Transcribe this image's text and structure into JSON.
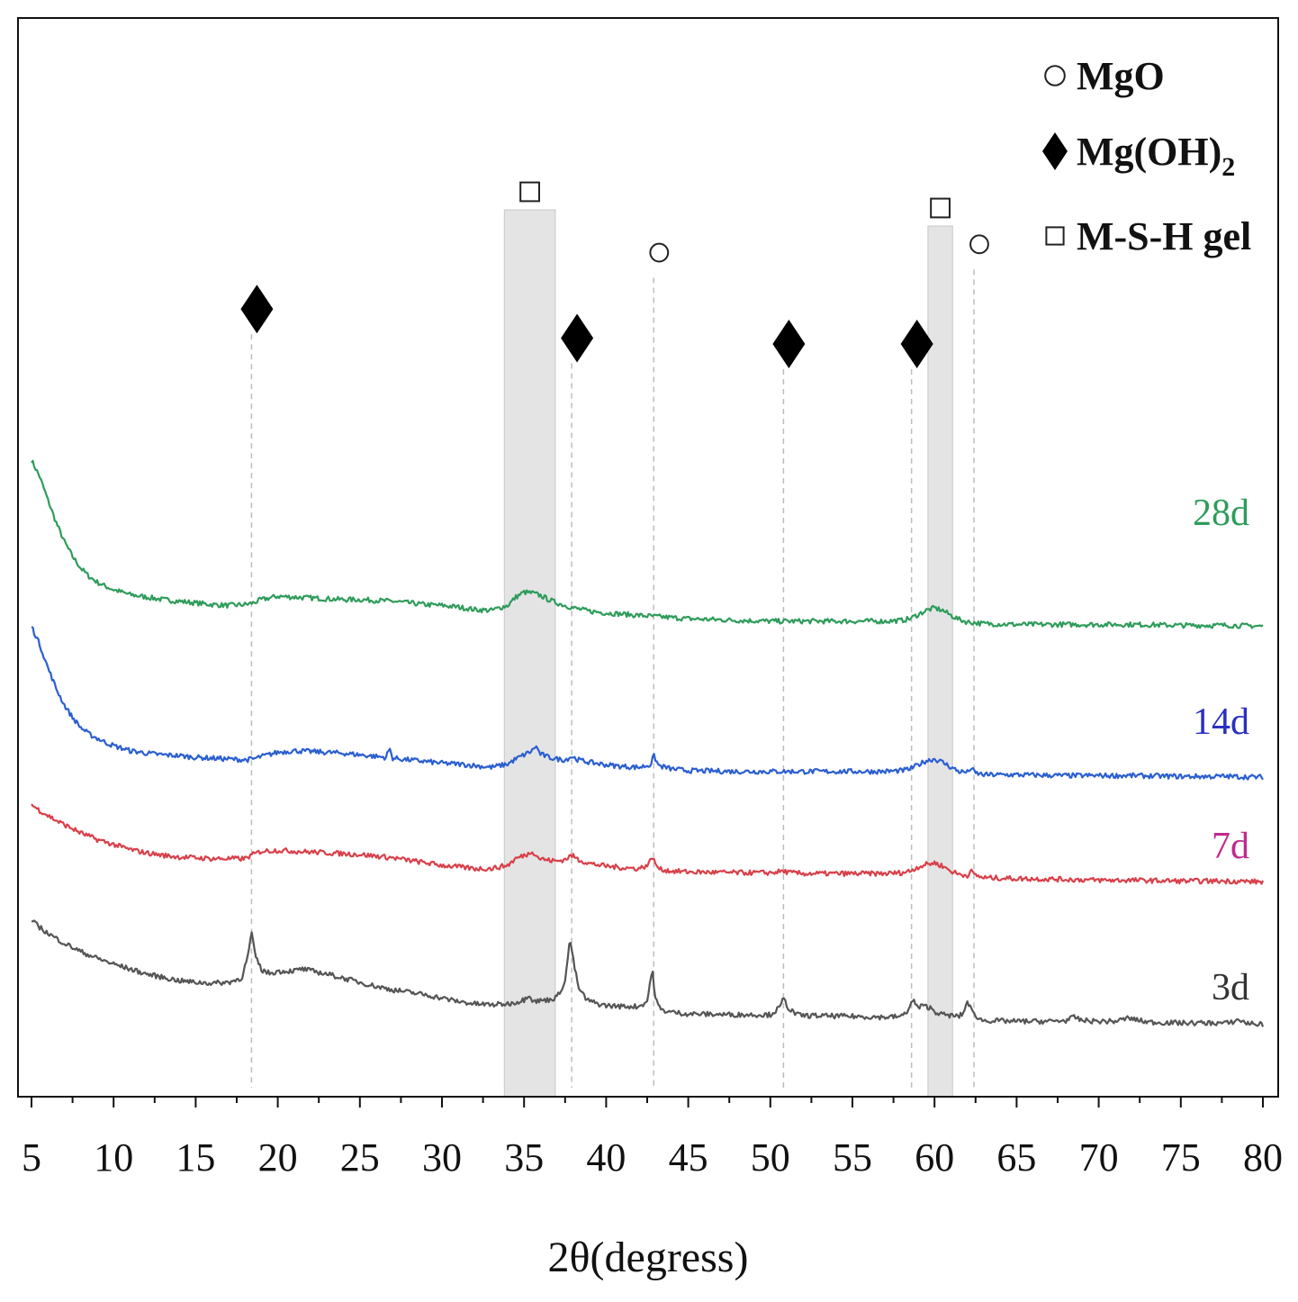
{
  "chart_data": {
    "type": "line",
    "title": "",
    "xlabel": "2θ(degress)",
    "ylabel": "",
    "xlim": [
      5,
      80
    ],
    "ylim": [
      0,
      10
    ],
    "x_ticks": [
      5,
      10,
      15,
      20,
      25,
      30,
      35,
      40,
      45,
      50,
      55,
      60,
      65,
      70,
      75,
      80
    ],
    "grid": false,
    "legend": {
      "placement": "top-right",
      "entries": [
        {
          "marker": "circle",
          "label": "MgO"
        },
        {
          "marker": "diamond",
          "label": "Mg(OH)",
          "subscript": "2"
        },
        {
          "marker": "square",
          "label": "M-S-H gel"
        }
      ]
    },
    "shaded_bands": [
      {
        "x_range": [
          33.8,
          36.9
        ],
        "marker": "square"
      },
      {
        "x_range": [
          59.6,
          61.1
        ],
        "marker": "square"
      }
    ],
    "reference_lines": [
      {
        "x": 18.4,
        "marker": "diamond",
        "marker_level": 8.62
      },
      {
        "x": 37.9,
        "marker": "diamond",
        "marker_level": 8.27
      },
      {
        "x": 42.9,
        "marker": "circle",
        "marker_level": 9.3
      },
      {
        "x": 50.8,
        "marker": "diamond",
        "marker_level": 8.2
      },
      {
        "x": 58.6,
        "marker": "diamond",
        "marker_level": 8.2
      },
      {
        "x": 62.4,
        "marker": "circle",
        "marker_level": 9.4
      }
    ],
    "series": [
      {
        "name": "28d",
        "color": "#2e9c5a",
        "label_color": "#2e9c5a",
        "x": [
          5,
          5.5,
          6,
          6.5,
          7,
          7.5,
          8,
          8.5,
          9,
          9.5,
          10,
          11,
          12,
          13,
          14,
          15,
          16,
          17,
          18,
          18.5,
          19,
          20,
          21,
          22,
          23,
          24,
          25,
          26,
          27,
          28,
          29,
          30,
          31,
          32,
          33,
          34,
          34.5,
          35,
          35.5,
          36,
          36.5,
          37,
          38,
          39,
          40,
          42,
          45,
          48,
          50,
          52,
          55,
          57,
          58,
          58.5,
          59,
          59.5,
          60,
          60.5,
          61,
          61.5,
          62,
          63,
          65,
          68,
          70,
          72,
          75,
          78,
          80
        ],
        "y": [
          6.8,
          6.6,
          6.32,
          6.05,
          5.82,
          5.64,
          5.5,
          5.4,
          5.33,
          5.28,
          5.24,
          5.18,
          5.15,
          5.12,
          5.1,
          5.08,
          5.06,
          5.05,
          5.06,
          5.08,
          5.12,
          5.16,
          5.15,
          5.14,
          5.13,
          5.12,
          5.12,
          5.11,
          5.1,
          5.08,
          5.06,
          5.05,
          5.03,
          5.0,
          4.99,
          5.05,
          5.15,
          5.21,
          5.2,
          5.17,
          5.12,
          5.08,
          5.02,
          4.98,
          4.96,
          4.93,
          4.89,
          4.87,
          4.86,
          4.86,
          4.86,
          4.86,
          4.87,
          4.89,
          4.94,
          4.99,
          5.02,
          4.99,
          4.93,
          4.88,
          4.85,
          4.83,
          4.82,
          4.82,
          4.82,
          4.82,
          4.81,
          4.81,
          4.8
        ]
      },
      {
        "name": "14d",
        "color": "#2b5fd0",
        "label_color": "#2b30c0",
        "x": [
          5,
          5.5,
          6,
          6.5,
          7,
          7.5,
          8,
          8.5,
          9,
          9.5,
          10,
          11,
          12,
          13,
          14,
          15,
          16,
          17,
          18,
          18.5,
          19,
          20,
          21,
          22,
          23,
          24,
          25,
          26,
          26.6,
          26.8,
          27,
          28,
          29,
          30,
          31,
          32,
          33,
          34,
          34.5,
          35,
          35.5,
          35.7,
          36,
          36.5,
          37,
          37.5,
          37.9,
          38.3,
          39,
          40,
          41,
          42,
          42.7,
          42.9,
          43.2,
          44,
          45,
          48,
          50,
          52,
          55,
          57,
          58,
          58.5,
          59,
          59.5,
          60,
          60.5,
          61,
          61.5,
          62,
          62.2,
          62.5,
          63,
          65,
          68,
          70,
          72,
          75,
          78,
          80
        ],
        "y": [
          4.8,
          4.58,
          4.3,
          4.05,
          3.85,
          3.7,
          3.58,
          3.5,
          3.45,
          3.4,
          3.36,
          3.3,
          3.27,
          3.25,
          3.24,
          3.22,
          3.21,
          3.2,
          3.19,
          3.2,
          3.23,
          3.28,
          3.3,
          3.29,
          3.28,
          3.27,
          3.25,
          3.23,
          3.22,
          3.33,
          3.21,
          3.19,
          3.17,
          3.15,
          3.14,
          3.12,
          3.1,
          3.14,
          3.2,
          3.25,
          3.3,
          3.36,
          3.26,
          3.22,
          3.2,
          3.19,
          3.23,
          3.19,
          3.16,
          3.13,
          3.11,
          3.1,
          3.13,
          3.24,
          3.12,
          3.08,
          3.06,
          3.05,
          3.05,
          3.05,
          3.05,
          3.05,
          3.06,
          3.08,
          3.13,
          3.18,
          3.2,
          3.16,
          3.1,
          3.05,
          3.04,
          3.09,
          3.03,
          3.01,
          3.01,
          3.0,
          3.0,
          3.0,
          2.99,
          2.99,
          2.98
        ]
      },
      {
        "name": "7d",
        "color": "#d8404a",
        "label_color": "#c02a8c",
        "x": [
          5,
          5.5,
          6,
          6.5,
          7,
          7.5,
          8,
          8.5,
          9,
          9.5,
          10,
          11,
          12,
          13,
          14,
          15,
          16,
          17,
          18,
          18.5,
          19,
          20,
          21,
          22,
          23,
          24,
          25,
          26,
          27,
          28,
          29,
          30,
          31,
          32,
          33,
          34,
          34.5,
          35,
          35.3,
          35.5,
          35.7,
          36,
          36.5,
          37,
          37.5,
          37.9,
          38.3,
          39,
          40,
          41,
          42,
          42.6,
          42.8,
          43.0,
          43.3,
          44,
          45,
          48,
          50,
          50.8,
          51.2,
          52,
          55,
          57,
          58,
          58.5,
          59,
          59.5,
          60,
          60.5,
          61,
          61.5,
          62,
          62.2,
          62.5,
          63,
          65,
          68,
          70,
          72,
          75,
          78,
          80
        ],
        "y": [
          2.65,
          2.58,
          2.52,
          2.46,
          2.41,
          2.36,
          2.31,
          2.27,
          2.23,
          2.2,
          2.17,
          2.11,
          2.07,
          2.04,
          2.02,
          2.01,
          2.0,
          2.0,
          2.0,
          2.05,
          2.09,
          2.1,
          2.09,
          2.08,
          2.07,
          2.06,
          2.05,
          2.03,
          2.01,
          1.98,
          1.95,
          1.92,
          1.9,
          1.88,
          1.88,
          1.92,
          2.0,
          2.04,
          2.06,
          2.1,
          2.04,
          2.0,
          1.98,
          1.97,
          1.99,
          2.04,
          1.99,
          1.94,
          1.91,
          1.89,
          1.88,
          1.93,
          2.04,
          1.93,
          1.87,
          1.85,
          1.84,
          1.83,
          1.83,
          1.85,
          1.83,
          1.82,
          1.82,
          1.82,
          1.83,
          1.85,
          1.9,
          1.93,
          1.95,
          1.91,
          1.85,
          1.81,
          1.8,
          1.85,
          1.8,
          1.77,
          1.76,
          1.75,
          1.74,
          1.74,
          1.73,
          1.73,
          1.72
        ]
      },
      {
        "name": "3d",
        "color": "#555555",
        "label_color": "#333333",
        "x": [
          5,
          6,
          7,
          8,
          9,
          10,
          11,
          12,
          13,
          14,
          15,
          16,
          17,
          17.8,
          18.2,
          18.4,
          18.6,
          19,
          19.5,
          20,
          21,
          21.5,
          22,
          23,
          24,
          25,
          26,
          27,
          28,
          29,
          30,
          31,
          32,
          33,
          34,
          34.5,
          35,
          35.3,
          35.5,
          35.7,
          36,
          36.5,
          37,
          37.5,
          37.8,
          38.0,
          38.3,
          38.8,
          39.5,
          40,
          41,
          42,
          42.5,
          42.8,
          43.0,
          43.3,
          44,
          45,
          48,
          50,
          50.6,
          50.8,
          51.1,
          51.6,
          52,
          55,
          57,
          58,
          58.4,
          58.7,
          59.0,
          59.3,
          59.8,
          60,
          60.5,
          61,
          61.5,
          61.8,
          62.0,
          62.3,
          62.8,
          63,
          65,
          67,
          68,
          68.5,
          69,
          70,
          71,
          71.8,
          72.5,
          73,
          75,
          78,
          78.5,
          79,
          80
        ],
        "y": [
          1.25,
          1.1,
          0.98,
          0.88,
          0.8,
          0.73,
          0.67,
          0.61,
          0.57,
          0.53,
          0.51,
          0.5,
          0.51,
          0.56,
          0.84,
          1.12,
          0.85,
          0.66,
          0.62,
          0.64,
          0.65,
          0.67,
          0.65,
          0.61,
          0.56,
          0.51,
          0.46,
          0.42,
          0.39,
          0.36,
          0.32,
          0.28,
          0.25,
          0.24,
          0.25,
          0.27,
          0.3,
          0.37,
          0.3,
          0.28,
          0.29,
          0.3,
          0.33,
          0.52,
          1.04,
          0.78,
          0.45,
          0.3,
          0.25,
          0.23,
          0.22,
          0.22,
          0.28,
          0.67,
          0.32,
          0.18,
          0.15,
          0.13,
          0.12,
          0.12,
          0.21,
          0.32,
          0.2,
          0.12,
          0.11,
          0.1,
          0.09,
          0.1,
          0.18,
          0.3,
          0.2,
          0.23,
          0.2,
          0.16,
          0.12,
          0.11,
          0.1,
          0.15,
          0.29,
          0.15,
          0.06,
          0.05,
          0.04,
          0.04,
          0.05,
          0.09,
          0.05,
          0.04,
          0.04,
          0.08,
          0.05,
          0.03,
          0.02,
          0.02,
          0.06,
          0.02,
          0.0
        ]
      }
    ]
  }
}
